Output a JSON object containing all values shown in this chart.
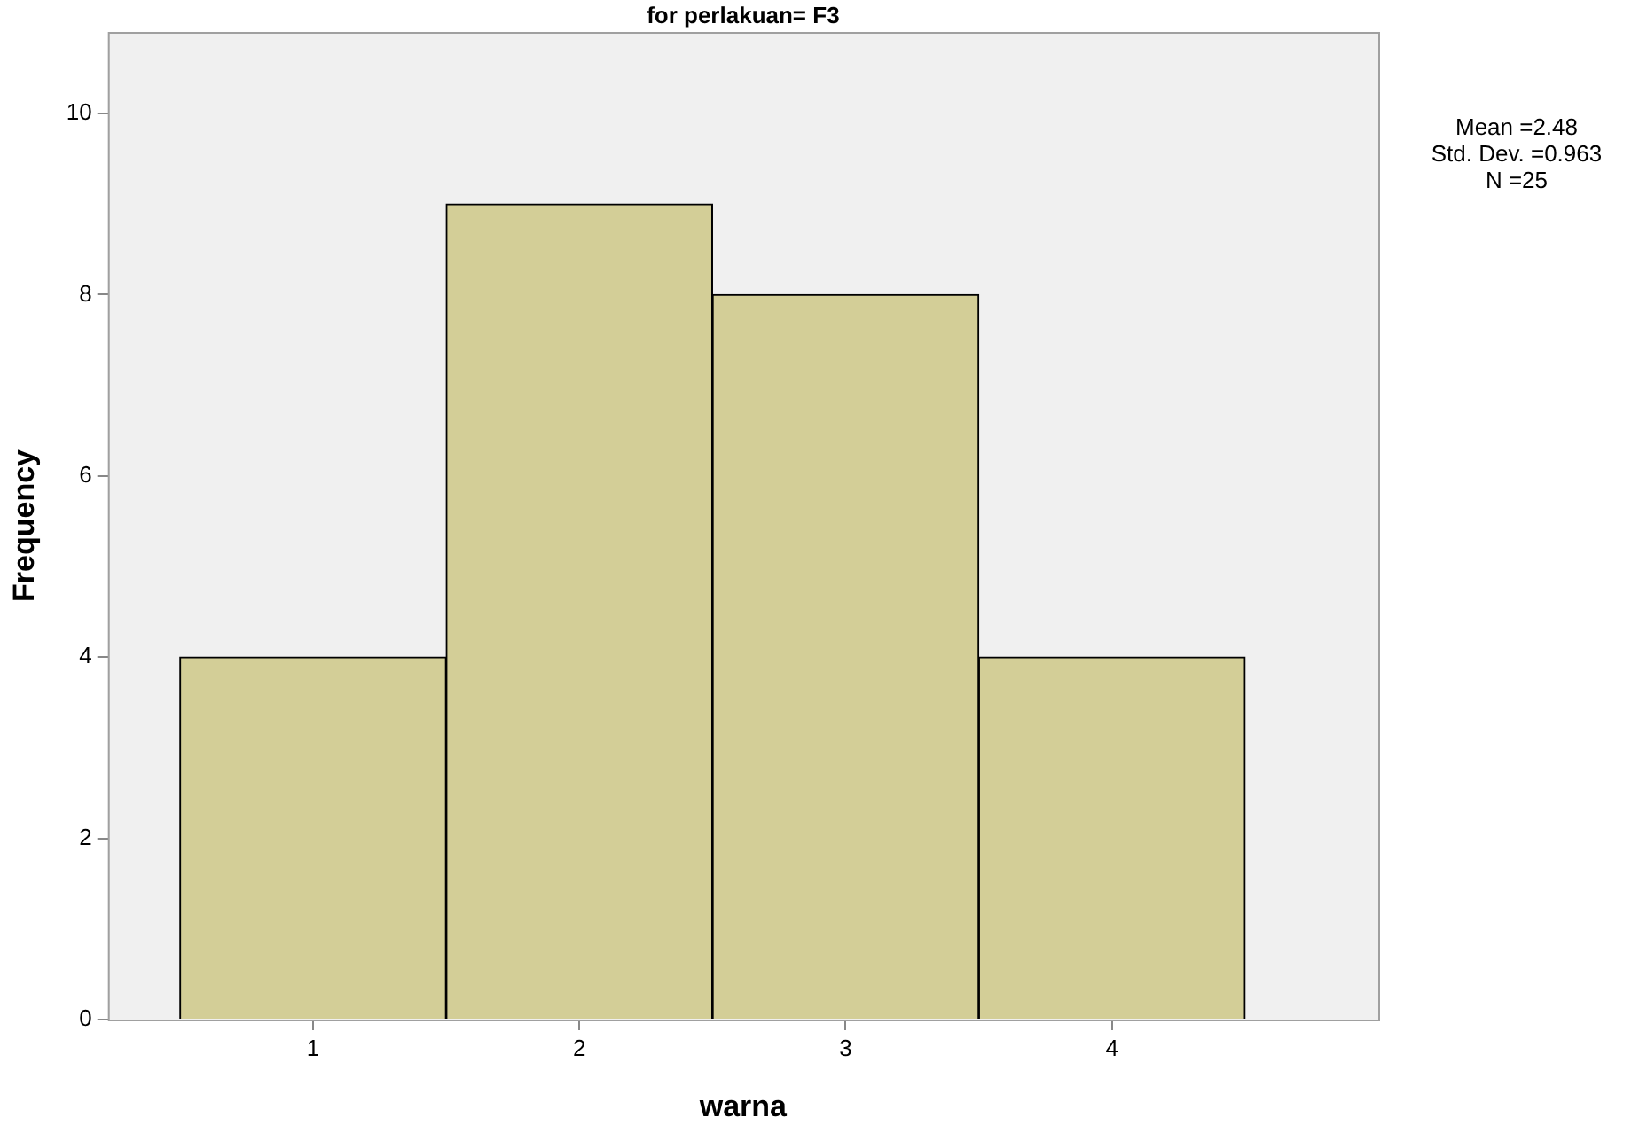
{
  "chart_data": {
    "type": "histogram",
    "title": "for perlakuan= F3",
    "xlabel": "warna",
    "ylabel": "Frequency",
    "bins": [
      0.5,
      1.5,
      2.5,
      3.5,
      4.5
    ],
    "values": [
      4,
      9,
      8,
      4
    ],
    "color": "#d3ce97",
    "xlim": [
      0.23,
      5.0
    ],
    "xticks": [
      1,
      2,
      3,
      4
    ],
    "ylim": [
      0,
      10.9
    ],
    "yticks": [
      0,
      2,
      4,
      6,
      8,
      10
    ],
    "grid": false,
    "legend": false,
    "annotations": [
      "Mean =2.48",
      "Std. Dev. =0.963",
      "N =25"
    ]
  }
}
